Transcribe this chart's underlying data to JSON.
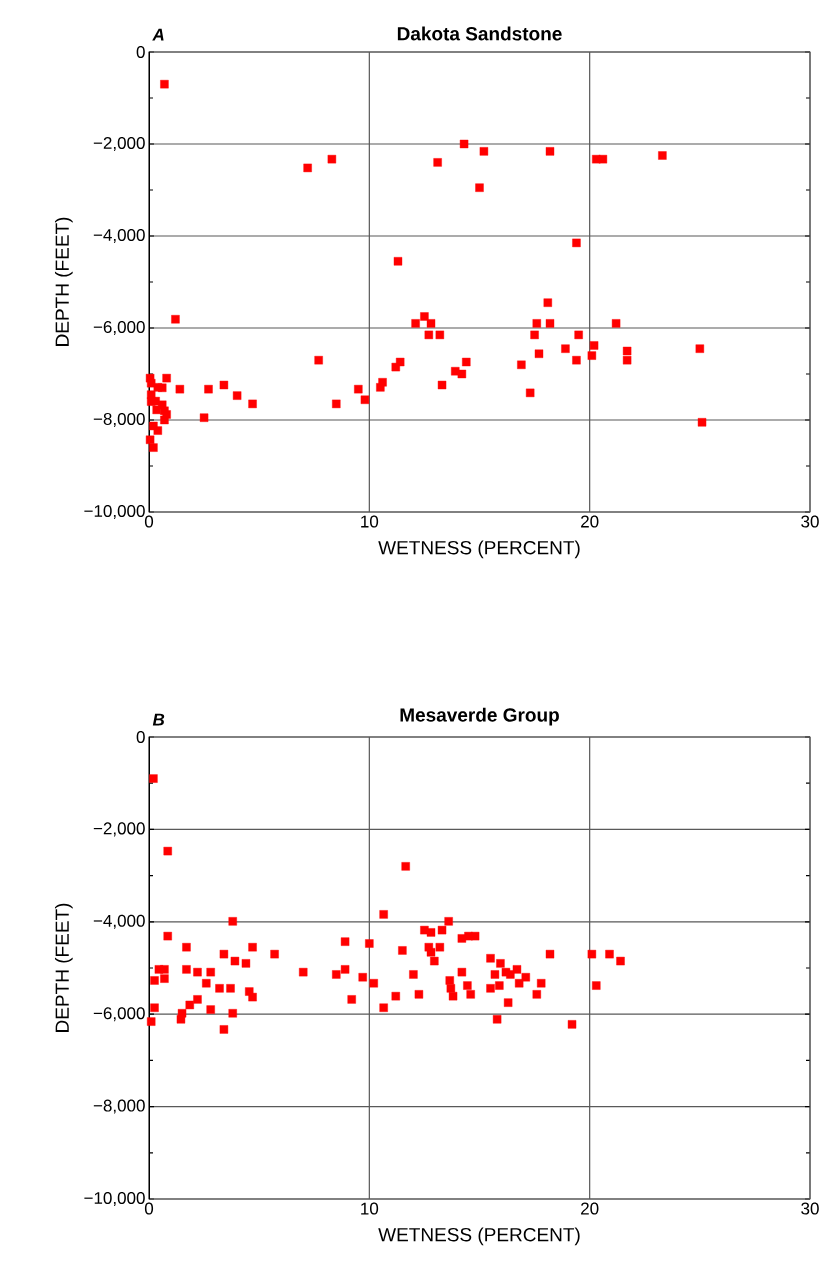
{
  "chart_data": [
    {
      "type": "scatter",
      "title": "Dakota Sandstone",
      "annotations": [
        "A"
      ],
      "xlabel": "WETNESS (PERCENT)",
      "ylabel": "DEPTH (FEET)",
      "color": "#ff0000",
      "marker": "square",
      "grid": true,
      "xlim": [
        0,
        30
      ],
      "ylim": [
        -10000,
        0
      ],
      "xticks": [
        0,
        10,
        20,
        30
      ],
      "yticks": [
        0,
        {
          "value": -2000,
          "label": "−2,000"
        },
        {
          "value": -4000,
          "label": "−4,000"
        },
        {
          "value": -6000,
          "label": "−6,000"
        },
        {
          "value": -8000,
          "label": "−8,000"
        },
        {
          "value": -10000,
          "label": "−10,000"
        }
      ],
      "x": [
        0.7,
        7.2,
        8.3,
        14.3,
        15.2,
        13.1,
        15.0,
        18.2,
        20.3,
        20.6,
        23.3,
        19.4,
        11.3,
        1.2,
        18.1,
        18.2,
        12.5,
        12.1,
        12.8,
        12.7,
        13.2,
        17.6,
        17.5,
        19.5,
        18.9,
        17.7,
        16.9,
        19.4,
        20.1,
        20.2,
        21.2,
        21.7,
        21.7,
        25.0,
        25.1,
        11.2,
        11.4,
        10.5,
        10.6,
        9.5,
        9.8,
        13.3,
        13.9,
        14.2,
        14.4,
        17.3,
        7.7,
        0.8,
        1.4,
        2.7,
        3.4,
        4.0,
        4.7,
        2.5,
        8.5,
        0.05,
        0.1,
        0.4,
        0.6,
        0.1,
        0.3,
        0.6,
        0.35,
        0.7,
        0.8,
        0.7,
        0.2,
        0.4,
        0.05,
        0.2,
        0.1
      ],
      "values": [
        -700,
        -2520,
        -2330,
        -2000,
        -2160,
        -2400,
        -2950,
        -2160,
        -2330,
        -2330,
        -2250,
        -4150,
        -4550,
        -5810,
        -5450,
        -5900,
        -5750,
        -5900,
        -5900,
        -6150,
        -6150,
        -5900,
        -6150,
        -6150,
        -6450,
        -6560,
        -6800,
        -6700,
        -6600,
        -6380,
        -5900,
        -6500,
        -6700,
        -6450,
        -8050,
        -6850,
        -6740,
        -7290,
        -7180,
        -7330,
        -7560,
        -7240,
        -6940,
        -7000,
        -6740,
        -7410,
        -6700,
        -7090,
        -7330,
        -7330,
        -7240,
        -7470,
        -7650,
        -7950,
        -7650,
        -7090,
        -7200,
        -7290,
        -7300,
        -7450,
        -7590,
        -7670,
        -7780,
        -7800,
        -7880,
        -8000,
        -8130,
        -8230,
        -8430,
        -8600,
        -7600
      ]
    },
    {
      "type": "scatter",
      "title": "Mesaverde Group",
      "annotations": [
        "B"
      ],
      "xlabel": "WETNESS (PERCENT)",
      "ylabel": "DEPTH (FEET)",
      "color": "#ff0000",
      "marker": "square",
      "grid": true,
      "xlim": [
        0,
        30
      ],
      "ylim": [
        -10000,
        0
      ],
      "xticks": [
        0,
        10,
        20,
        30
      ],
      "yticks": [
        0,
        {
          "value": -2000,
          "label": "−2,000"
        },
        {
          "value": -4000,
          "label": "−4,000"
        },
        {
          "value": -6000,
          "label": "−6,000"
        },
        {
          "value": -8000,
          "label": "−8,000"
        },
        {
          "value": -10000,
          "label": "−10,000"
        }
      ],
      "x": [
        0.2,
        0.85,
        3.8,
        0.85,
        1.7,
        4.7,
        3.4,
        5.7,
        3.9,
        4.4,
        0.45,
        0.7,
        1.7,
        2.2,
        2.8,
        0.7,
        0.25,
        2.6,
        3.2,
        3.7,
        4.55,
        4.7,
        2.2,
        1.85,
        0.25,
        1.5,
        2.8,
        3.8,
        1.45,
        0.1,
        3.4,
        7.0,
        8.5,
        8.9,
        8.9,
        10.0,
        9.7,
        9.2,
        10.2,
        11.65,
        10.65,
        13.6,
        12.5,
        12.8,
        13.3,
        14.2,
        14.5,
        14.8,
        11.5,
        12.7,
        13.2,
        12.8,
        12.95,
        15.5,
        15.95,
        18.2,
        20.1,
        20.9,
        21.4,
        12.0,
        14.2,
        15.7,
        16.2,
        16.4,
        16.7,
        17.1,
        13.65,
        13.7,
        14.45,
        13.8,
        14.6,
        15.5,
        15.9,
        16.8,
        17.8,
        17.6,
        12.25,
        11.2,
        10.65,
        16.3,
        20.3,
        15.8,
        19.2
      ],
      "values": [
        -900,
        -2470,
        -3990,
        -4310,
        -4550,
        -4550,
        -4700,
        -4700,
        -4850,
        -4900,
        -5030,
        -5030,
        -5030,
        -5090,
        -5090,
        -5230,
        -5270,
        -5330,
        -5440,
        -5440,
        -5510,
        -5630,
        -5680,
        -5800,
        -5860,
        -5980,
        -5900,
        -5980,
        -6110,
        -6160,
        -6330,
        -5090,
        -5140,
        -5030,
        -4430,
        -4470,
        -5200,
        -5680,
        -5330,
        -2800,
        -3840,
        -3990,
        -4180,
        -4230,
        -4180,
        -4360,
        -4310,
        -4310,
        -4620,
        -4550,
        -4550,
        -4660,
        -4850,
        -4790,
        -4900,
        -4700,
        -4700,
        -4700,
        -4850,
        -5140,
        -5090,
        -5140,
        -5090,
        -5140,
        -5030,
        -5200,
        -5270,
        -5440,
        -5380,
        -5610,
        -5570,
        -5440,
        -5380,
        -5330,
        -5330,
        -5570,
        -5570,
        -5610,
        -5860,
        -5750,
        -5380,
        -6110,
        -6220
      ]
    }
  ]
}
